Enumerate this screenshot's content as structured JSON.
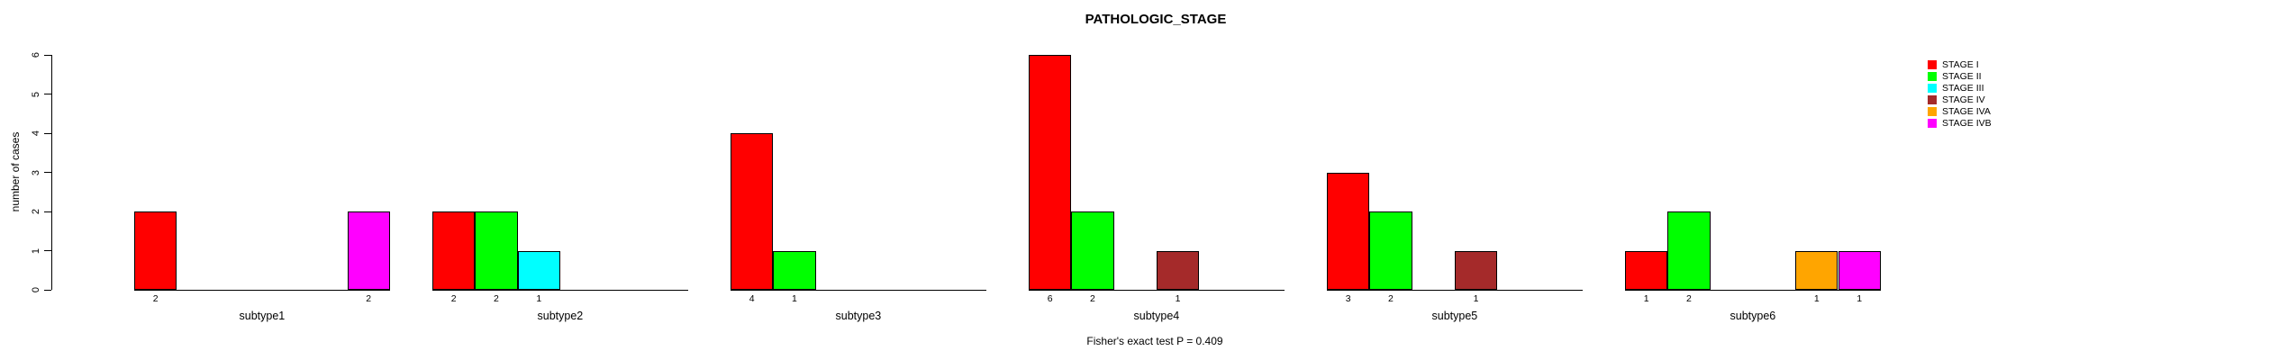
{
  "chart_data": {
    "type": "bar",
    "title": "PATHOLOGIC_STAGE",
    "ylabel": "number of cases",
    "footnote": "Fisher's exact test P = 0.409",
    "ylim": [
      0,
      6
    ],
    "yticks": [
      0,
      1,
      2,
      3,
      4,
      5,
      6
    ],
    "grid": false,
    "legend_position": "right",
    "stages": [
      {
        "name": "STAGE I",
        "color": "#FF0000"
      },
      {
        "name": "STAGE II",
        "color": "#00FF00"
      },
      {
        "name": "STAGE III",
        "color": "#00FFFF"
      },
      {
        "name": "STAGE IV",
        "color": "#A52A2A"
      },
      {
        "name": "STAGE IVA",
        "color": "#FFA500"
      },
      {
        "name": "STAGE IVB",
        "color": "#FF00FF"
      }
    ],
    "categories": [
      "subtype1",
      "subtype2",
      "subtype3",
      "subtype4",
      "subtype5",
      "subtype6"
    ],
    "groups": [
      {
        "label": "subtype1",
        "counts": [
          2,
          0,
          0,
          0,
          0,
          2
        ]
      },
      {
        "label": "subtype2",
        "counts": [
          2,
          2,
          1,
          0,
          0,
          0
        ]
      },
      {
        "label": "subtype3",
        "counts": [
          4,
          1,
          0,
          0,
          0,
          0
        ]
      },
      {
        "label": "subtype4",
        "counts": [
          6,
          2,
          0,
          1,
          0,
          0
        ]
      },
      {
        "label": "subtype5",
        "counts": [
          3,
          2,
          0,
          1,
          0,
          0
        ]
      },
      {
        "label": "subtype6",
        "counts": [
          1,
          2,
          0,
          0,
          1,
          1
        ]
      }
    ]
  }
}
